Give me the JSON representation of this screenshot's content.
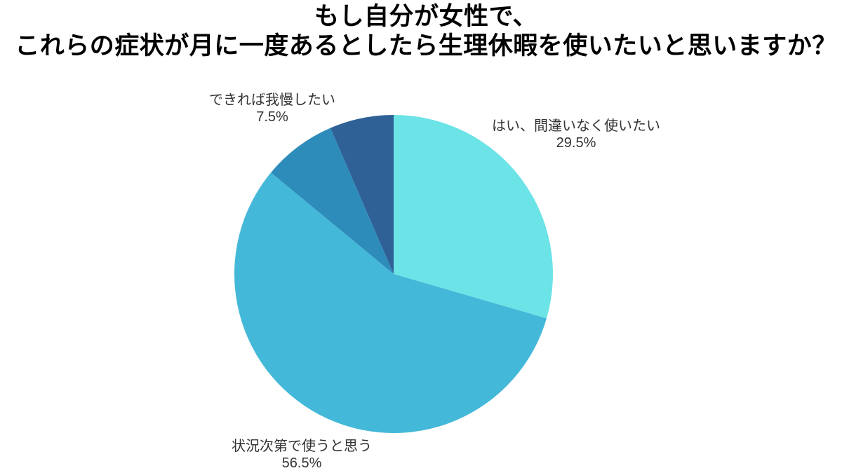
{
  "title": {
    "line1": "もし自分が女性で、",
    "line2": "これらの症状が月に一度あるとしたら生理休暇を使いたいと思いますか？"
  },
  "chart_data": {
    "type": "pie",
    "title": "もし自分が女性で、これらの症状が月に一度あるとしたら生理休暇を使いたいと思いますか？",
    "unit": "%",
    "start_angle_deg": 0,
    "direction": "clockwise",
    "legend_position": "none",
    "labels_outside": true,
    "slices": [
      {
        "label": "はい、間違いなく使いたい",
        "value": 29.5,
        "pct_text": "29.5%",
        "color": "#6ce3e7"
      },
      {
        "label": "状況次第で使うと思う",
        "value": 56.5,
        "pct_text": "56.5%",
        "color": "#44b8d8"
      },
      {
        "label": "できれば我慢したい",
        "value": 7.5,
        "pct_text": "7.5%",
        "color": "#2e8cbb"
      },
      {
        "label": "",
        "value": 6.5,
        "pct_text": "",
        "color": "#2f6197"
      }
    ]
  },
  "colors": {
    "background": "#ffffff",
    "title_text": "#000000",
    "label_text": "#333333"
  }
}
